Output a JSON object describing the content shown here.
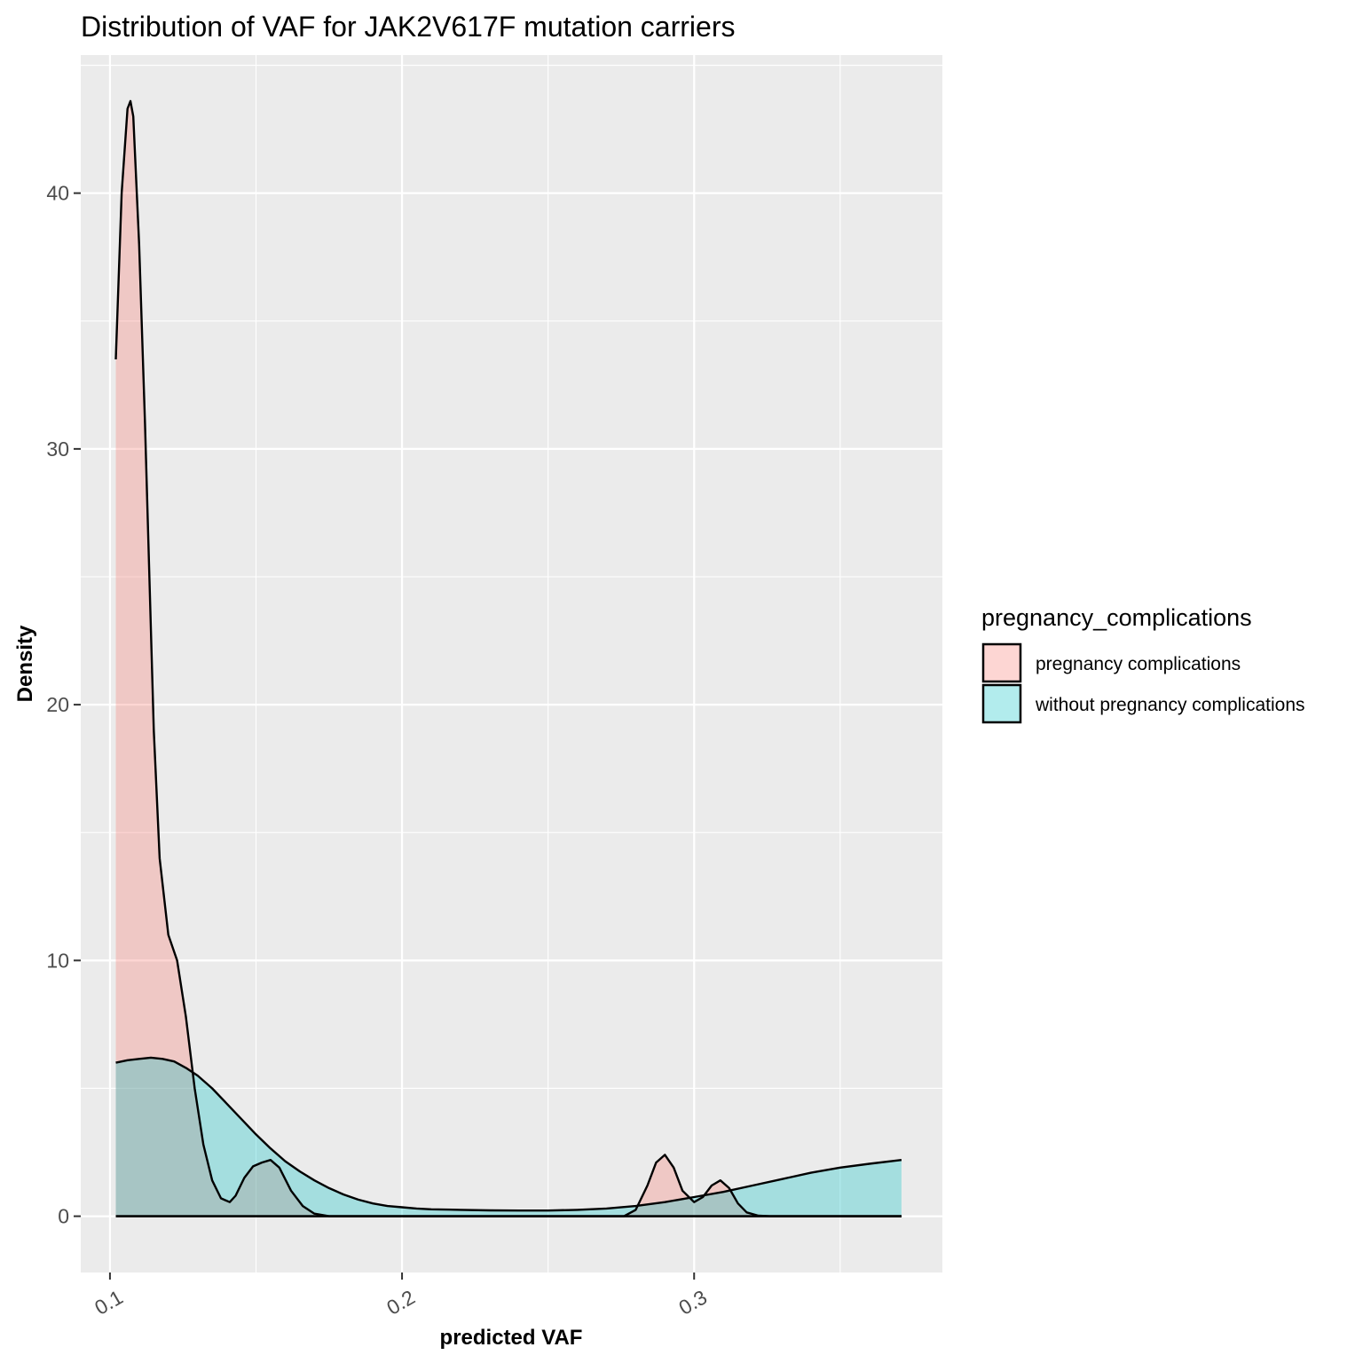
{
  "chart_data": {
    "type": "area",
    "title": "Distribution of VAF for JAK2V617F mutation carriers",
    "xlabel": "predicted VAF",
    "ylabel": "Density",
    "xlim": [
      0.09,
      0.385
    ],
    "ylim": [
      -2.2,
      45.4
    ],
    "x_ticks": [
      0.1,
      0.2,
      0.3
    ],
    "x_tick_labels": [
      "0.1",
      "0.2",
      "0.3"
    ],
    "y_ticks": [
      0,
      10,
      20,
      30,
      40
    ],
    "y_tick_labels": [
      "0",
      "10",
      "20",
      "30",
      "40"
    ],
    "grid": true,
    "legend_title": "pregnancy_complications",
    "legend_position": "right",
    "series": [
      {
        "name": "pregnancy complications",
        "fill": "#F8766D",
        "points": [
          [
            0.102,
            33.5
          ],
          [
            0.104,
            40.0
          ],
          [
            0.106,
            43.3
          ],
          [
            0.107,
            43.6
          ],
          [
            0.108,
            43.0
          ],
          [
            0.11,
            38.0
          ],
          [
            0.112,
            31.0
          ],
          [
            0.113,
            27.0
          ],
          [
            0.115,
            19.0
          ],
          [
            0.117,
            14.0
          ],
          [
            0.12,
            11.0
          ],
          [
            0.123,
            10.0
          ],
          [
            0.126,
            7.8
          ],
          [
            0.129,
            5.0
          ],
          [
            0.132,
            2.8
          ],
          [
            0.135,
            1.4
          ],
          [
            0.138,
            0.7
          ],
          [
            0.141,
            0.55
          ],
          [
            0.143,
            0.8
          ],
          [
            0.146,
            1.5
          ],
          [
            0.149,
            1.95
          ],
          [
            0.152,
            2.1
          ],
          [
            0.155,
            2.2
          ],
          [
            0.158,
            1.9
          ],
          [
            0.162,
            1.0
          ],
          [
            0.166,
            0.4
          ],
          [
            0.17,
            0.1
          ],
          [
            0.175,
            0.0
          ],
          [
            0.2,
            0.0
          ],
          [
            0.25,
            0.0
          ],
          [
            0.276,
            0.0
          ],
          [
            0.28,
            0.25
          ],
          [
            0.284,
            1.2
          ],
          [
            0.287,
            2.1
          ],
          [
            0.29,
            2.4
          ],
          [
            0.293,
            1.9
          ],
          [
            0.296,
            1.0
          ],
          [
            0.3,
            0.55
          ],
          [
            0.303,
            0.75
          ],
          [
            0.306,
            1.2
          ],
          [
            0.309,
            1.4
          ],
          [
            0.312,
            1.1
          ],
          [
            0.315,
            0.5
          ],
          [
            0.318,
            0.15
          ],
          [
            0.322,
            0.02
          ],
          [
            0.326,
            0.0
          ],
          [
            0.34,
            0.0
          ],
          [
            0.371,
            0.0
          ]
        ]
      },
      {
        "name": "without pregnancy complications",
        "fill": "#00BFC4",
        "points": [
          [
            0.102,
            6.0
          ],
          [
            0.106,
            6.1
          ],
          [
            0.11,
            6.15
          ],
          [
            0.114,
            6.2
          ],
          [
            0.118,
            6.15
          ],
          [
            0.122,
            6.05
          ],
          [
            0.126,
            5.8
          ],
          [
            0.13,
            5.5
          ],
          [
            0.135,
            5.0
          ],
          [
            0.14,
            4.4
          ],
          [
            0.145,
            3.8
          ],
          [
            0.15,
            3.2
          ],
          [
            0.155,
            2.65
          ],
          [
            0.16,
            2.15
          ],
          [
            0.165,
            1.75
          ],
          [
            0.17,
            1.4
          ],
          [
            0.175,
            1.1
          ],
          [
            0.18,
            0.85
          ],
          [
            0.185,
            0.65
          ],
          [
            0.19,
            0.5
          ],
          [
            0.195,
            0.4
          ],
          [
            0.2,
            0.35
          ],
          [
            0.205,
            0.3
          ],
          [
            0.21,
            0.27
          ],
          [
            0.22,
            0.25
          ],
          [
            0.23,
            0.23
          ],
          [
            0.24,
            0.22
          ],
          [
            0.25,
            0.22
          ],
          [
            0.26,
            0.25
          ],
          [
            0.27,
            0.3
          ],
          [
            0.28,
            0.4
          ],
          [
            0.29,
            0.55
          ],
          [
            0.3,
            0.75
          ],
          [
            0.31,
            0.95
          ],
          [
            0.32,
            1.2
          ],
          [
            0.33,
            1.45
          ],
          [
            0.34,
            1.7
          ],
          [
            0.35,
            1.9
          ],
          [
            0.36,
            2.05
          ],
          [
            0.371,
            2.2
          ]
        ]
      }
    ]
  }
}
